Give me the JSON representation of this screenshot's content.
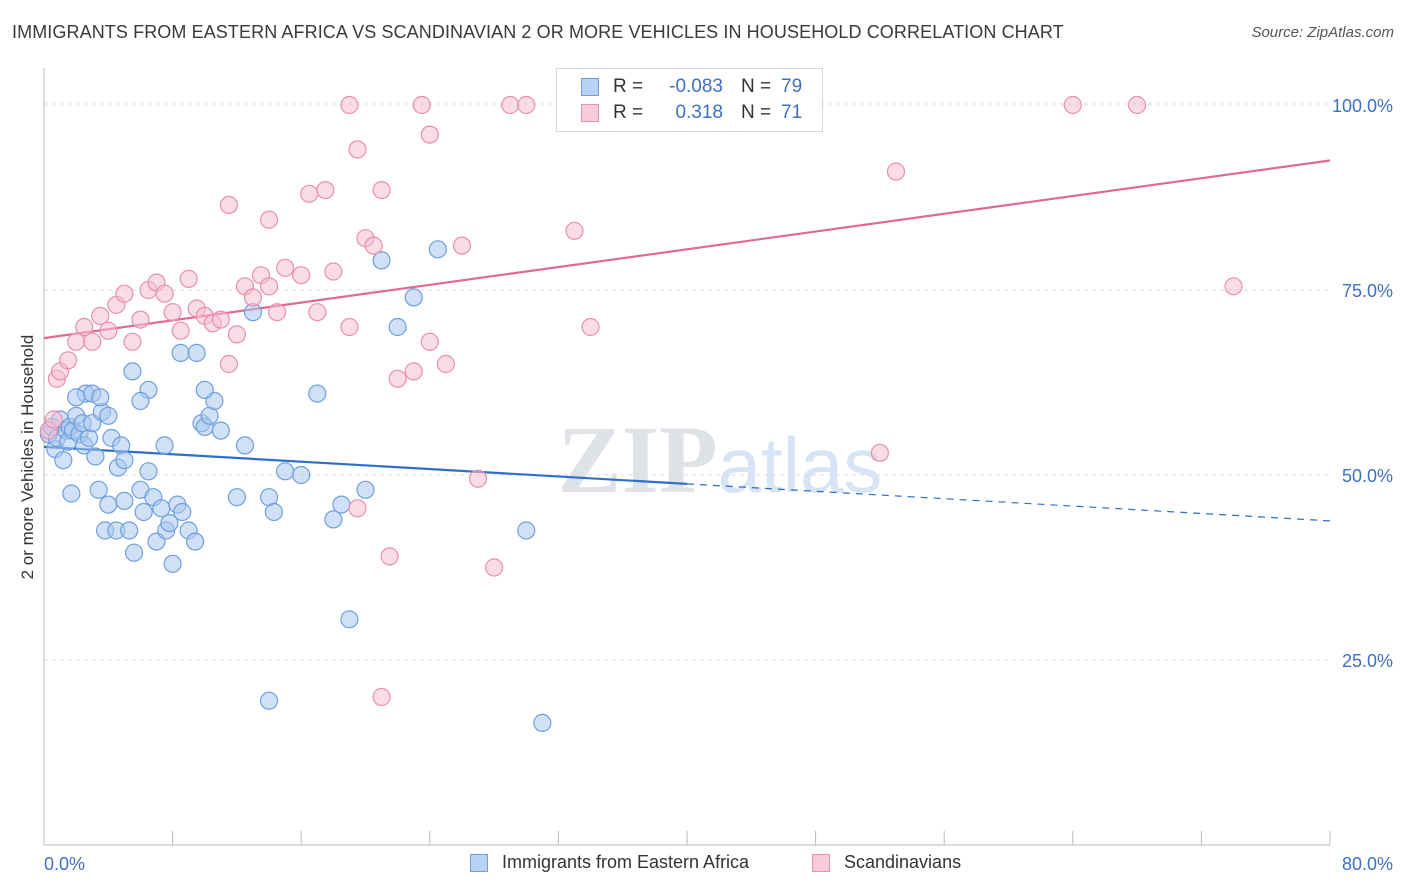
{
  "title": "IMMIGRANTS FROM EASTERN AFRICA VS SCANDINAVIAN 2 OR MORE VEHICLES IN HOUSEHOLD CORRELATION CHART",
  "source": "Source: ZipAtlas.com",
  "watermark": "ZIPatlas",
  "colors": {
    "blue_fill": "#a9c8f0",
    "blue_stroke": "#6f9fdc",
    "blue_line": "#2f6fcc",
    "pink_fill": "#f6bfd0",
    "pink_stroke": "#e890ad",
    "pink_line": "#e06a96",
    "tick": "#3d6fc4"
  },
  "legend": {
    "rows": [
      {
        "r_label": "R =",
        "r_value": "-0.083",
        "n_label": "N =",
        "n_value": "79"
      },
      {
        "r_label": "R =",
        "r_value": "0.318",
        "n_label": "N =",
        "n_value": "71"
      }
    ]
  },
  "bottom_legend": [
    "Immigrants from Eastern Africa",
    "Scandinavians"
  ],
  "chart_data": {
    "type": "scatter",
    "ylabel": "2 or more Vehicles in Household",
    "xlim": [
      0,
      80
    ],
    "ylim": [
      0,
      105
    ],
    "x_tick_labels": [
      "0.0%",
      "80.0%"
    ],
    "y_ticks": [
      25,
      50,
      75,
      100
    ],
    "y_tick_labels": [
      "25.0%",
      "50.0%",
      "75.0%",
      "100.0%"
    ],
    "grid": "horizontal dashed",
    "series": [
      {
        "name": "Immigrants from Eastern Africa",
        "trend": {
          "x0": 0,
          "y0": 53.8,
          "x1": 40,
          "y1": 48.8,
          "dashed_to_x": 80,
          "dashed_to_y": 43.8
        },
        "points": [
          [
            0.3,
            55.5
          ],
          [
            0.5,
            56.5
          ],
          [
            0.7,
            53.5
          ],
          [
            0.8,
            55
          ],
          [
            1.0,
            57.5
          ],
          [
            1.2,
            52
          ],
          [
            1.4,
            56
          ],
          [
            1.5,
            54.5
          ],
          [
            1.6,
            56.5
          ],
          [
            1.8,
            56
          ],
          [
            2.0,
            58
          ],
          [
            2.2,
            55.5
          ],
          [
            2.4,
            57
          ],
          [
            2.5,
            54
          ],
          [
            2.6,
            61
          ],
          [
            2.8,
            55
          ],
          [
            3.0,
            57
          ],
          [
            3.2,
            52.5
          ],
          [
            3.4,
            48
          ],
          [
            3.6,
            58.5
          ],
          [
            1.7,
            47.5
          ],
          [
            3.8,
            42.5
          ],
          [
            4.0,
            46
          ],
          [
            4.2,
            55
          ],
          [
            4.5,
            42.5
          ],
          [
            4.6,
            51
          ],
          [
            4.8,
            54
          ],
          [
            5.0,
            46.5
          ],
          [
            5.3,
            42.5
          ],
          [
            5.6,
            39.5
          ],
          [
            6.0,
            48
          ],
          [
            6.2,
            45
          ],
          [
            6.5,
            50.5
          ],
          [
            6.8,
            47
          ],
          [
            7.0,
            41
          ],
          [
            7.3,
            45.5
          ],
          [
            7.6,
            42.5
          ],
          [
            7.8,
            43.5
          ],
          [
            8.0,
            38
          ],
          [
            8.3,
            46
          ],
          [
            8.6,
            45
          ],
          [
            9.0,
            42.5
          ],
          [
            9.4,
            41
          ],
          [
            9.8,
            57
          ],
          [
            10.0,
            56.5
          ],
          [
            10.3,
            58
          ],
          [
            10.6,
            60
          ],
          [
            11.0,
            56
          ],
          [
            12.0,
            47
          ],
          [
            12.5,
            54
          ],
          [
            13.0,
            72
          ],
          [
            14.0,
            47
          ],
          [
            14.3,
            45
          ],
          [
            15.0,
            50.5
          ],
          [
            16.0,
            50
          ],
          [
            17.0,
            61
          ],
          [
            18.0,
            44
          ],
          [
            18.5,
            46
          ],
          [
            19.0,
            30.5
          ],
          [
            20.0,
            48
          ],
          [
            21.0,
            79
          ],
          [
            22.0,
            70
          ],
          [
            23.0,
            74
          ],
          [
            24.5,
            80.5
          ],
          [
            30.0,
            42.5
          ],
          [
            31.0,
            16.5
          ],
          [
            14.0,
            19.5
          ],
          [
            5.5,
            64
          ],
          [
            6.5,
            61.5
          ],
          [
            8.5,
            66.5
          ],
          [
            9.5,
            66.5
          ],
          [
            10.0,
            61.5
          ],
          [
            3.0,
            61
          ],
          [
            3.5,
            60.5
          ],
          [
            2.0,
            60.5
          ],
          [
            4.0,
            58
          ],
          [
            5.0,
            52
          ],
          [
            6.0,
            60
          ],
          [
            7.5,
            54
          ]
        ]
      },
      {
        "name": "Scandinavians",
        "trend": {
          "x0": 0,
          "y0": 68.5,
          "x1": 80,
          "y1": 92.5
        },
        "points": [
          [
            0.3,
            56
          ],
          [
            0.6,
            57.5
          ],
          [
            0.8,
            63
          ],
          [
            1.0,
            64
          ],
          [
            1.5,
            65.5
          ],
          [
            2.0,
            68
          ],
          [
            2.5,
            70
          ],
          [
            3.0,
            68
          ],
          [
            3.5,
            71.5
          ],
          [
            4.0,
            69.5
          ],
          [
            4.5,
            73
          ],
          [
            5.0,
            74.5
          ],
          [
            5.5,
            68
          ],
          [
            6.0,
            71
          ],
          [
            6.5,
            75
          ],
          [
            7.0,
            76
          ],
          [
            7.5,
            74.5
          ],
          [
            8.0,
            72
          ],
          [
            8.5,
            69.5
          ],
          [
            9.0,
            76.5
          ],
          [
            9.5,
            72.5
          ],
          [
            10.0,
            71.5
          ],
          [
            10.5,
            70.5
          ],
          [
            11.0,
            71
          ],
          [
            11.5,
            65
          ],
          [
            12.0,
            69
          ],
          [
            12.5,
            75.5
          ],
          [
            13.0,
            74
          ],
          [
            13.5,
            77
          ],
          [
            14.0,
            75.5
          ],
          [
            14.5,
            72
          ],
          [
            15.0,
            78
          ],
          [
            16.0,
            77
          ],
          [
            17.0,
            72
          ],
          [
            18.0,
            77.5
          ],
          [
            19.0,
            70
          ],
          [
            20.0,
            82
          ],
          [
            21.0,
            88.5
          ],
          [
            22.0,
            63
          ],
          [
            23.0,
            64
          ],
          [
            24.0,
            68
          ],
          [
            25.0,
            65
          ],
          [
            26.0,
            81
          ],
          [
            27.0,
            49.5
          ],
          [
            28.0,
            37.5
          ],
          [
            29.0,
            100
          ],
          [
            30.0,
            100
          ],
          [
            33.0,
            83
          ],
          [
            34.0,
            70
          ],
          [
            35.0,
            100
          ],
          [
            38.0,
            100
          ],
          [
            40.0,
            100
          ],
          [
            42.0,
            100
          ],
          [
            44.0,
            100
          ],
          [
            52.0,
            53
          ],
          [
            53.0,
            91
          ],
          [
            64.0,
            100
          ],
          [
            68.0,
            100
          ],
          [
            74.0,
            75.5
          ],
          [
            11.5,
            86.5
          ],
          [
            16.5,
            88
          ],
          [
            19.5,
            94
          ],
          [
            24.0,
            96
          ],
          [
            23.5,
            100
          ],
          [
            19.0,
            100
          ],
          [
            21.5,
            39
          ],
          [
            21.0,
            20
          ],
          [
            14.0,
            84.5
          ],
          [
            17.5,
            88.5
          ],
          [
            20.5,
            81
          ],
          [
            19.5,
            45.5
          ]
        ]
      }
    ]
  }
}
